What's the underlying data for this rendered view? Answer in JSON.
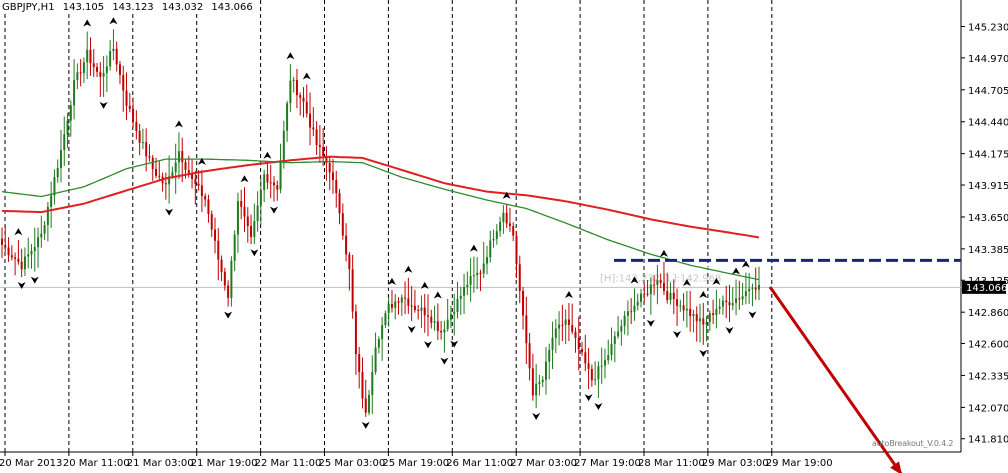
{
  "header": {
    "symbol": "GBPJPY,H1",
    "open": "143.105",
    "high": "143.123",
    "low": "143.032",
    "close": "143.066"
  },
  "current_price_label": "143.066",
  "box_label": "[H]:143.232 [L]:142.968",
  "watermark": "autoBreakout_V.0.4.2",
  "colors": {
    "bull": "#1f7a1f",
    "bear": "#c00000",
    "ma_fast": "#2e8b2e",
    "ma_slow": "#e02020",
    "level_line": "#1a237e",
    "arrow": "#c00000",
    "grid": "#000000",
    "price_line": "#c0c0c0"
  },
  "chart_data": {
    "type": "candlestick",
    "title": "GBPJPY,H1",
    "price_axis": {
      "range": [
        141.7,
        145.45
      ],
      "ticks": [
        "145.230",
        "144.970",
        "144.705",
        "144.440",
        "144.175",
        "143.915",
        "143.650",
        "143.385",
        "143.125",
        "142.860",
        "142.600",
        "142.335",
        "142.070",
        "141.810"
      ]
    },
    "time_axis": {
      "labels": [
        "20 Mar 2013",
        "20 Mar 11:00",
        "21 Mar 03:00",
        "21 Mar 19:00",
        "22 Mar 11:00",
        "25 Mar 03:00",
        "25 Mar 19:00",
        "26 Mar 11:00",
        "27 Mar 03:00",
        "27 Mar 19:00",
        "28 Mar 11:00",
        "29 Mar 03:00",
        "29 Mar 19:00"
      ],
      "separators": 13
    },
    "current_price": 143.066,
    "breakout_level": 143.29,
    "box": {
      "high": 143.232,
      "low": 142.968
    },
    "ma_fast_anchor": [
      [
        0,
        143.86
      ],
      [
        12,
        143.82
      ],
      [
        25,
        143.9
      ],
      [
        38,
        144.05
      ],
      [
        50,
        144.13
      ],
      [
        62,
        144.13
      ],
      [
        75,
        144.12
      ],
      [
        88,
        144.1
      ],
      [
        100,
        144.11
      ],
      [
        110,
        144.1
      ],
      [
        122,
        143.98
      ],
      [
        135,
        143.88
      ],
      [
        148,
        143.79
      ],
      [
        160,
        143.72
      ],
      [
        172,
        143.6
      ],
      [
        185,
        143.46
      ],
      [
        198,
        143.34
      ],
      [
        210,
        143.25
      ],
      [
        222,
        143.18
      ],
      [
        231,
        143.13
      ]
    ],
    "ma_slow_anchor": [
      [
        0,
        143.7
      ],
      [
        12,
        143.69
      ],
      [
        25,
        143.76
      ],
      [
        38,
        143.87
      ],
      [
        50,
        143.97
      ],
      [
        62,
        144.03
      ],
      [
        75,
        144.08
      ],
      [
        88,
        144.12
      ],
      [
        100,
        144.15
      ],
      [
        110,
        144.14
      ],
      [
        122,
        144.04
      ],
      [
        135,
        143.93
      ],
      [
        148,
        143.86
      ],
      [
        160,
        143.83
      ],
      [
        172,
        143.78
      ],
      [
        185,
        143.71
      ],
      [
        198,
        143.63
      ],
      [
        210,
        143.57
      ],
      [
        222,
        143.52
      ],
      [
        231,
        143.48
      ]
    ],
    "close_anchor": [
      [
        0,
        143.42
      ],
      [
        6,
        143.25
      ],
      [
        12,
        143.5
      ],
      [
        18,
        144.2
      ],
      [
        22,
        144.75
      ],
      [
        26,
        145.0
      ],
      [
        30,
        144.8
      ],
      [
        34,
        145.05
      ],
      [
        38,
        144.6
      ],
      [
        42,
        144.3
      ],
      [
        46,
        144.05
      ],
      [
        50,
        143.9
      ],
      [
        54,
        144.2
      ],
      [
        58,
        143.95
      ],
      [
        62,
        143.8
      ],
      [
        66,
        143.3
      ],
      [
        69,
        143.0
      ],
      [
        72,
        143.8
      ],
      [
        76,
        143.45
      ],
      [
        80,
        144.0
      ],
      [
        84,
        143.9
      ],
      [
        88,
        144.8
      ],
      [
        92,
        144.6
      ],
      [
        96,
        144.25
      ],
      [
        100,
        144.05
      ],
      [
        103,
        143.7
      ],
      [
        106,
        143.2
      ],
      [
        108,
        142.5
      ],
      [
        111,
        142.0
      ],
      [
        114,
        142.6
      ],
      [
        118,
        142.9
      ],
      [
        122,
        143.0
      ],
      [
        126,
        142.9
      ],
      [
        130,
        142.85
      ],
      [
        134,
        142.7
      ],
      [
        138,
        142.9
      ],
      [
        142,
        143.1
      ],
      [
        146,
        143.2
      ],
      [
        150,
        143.5
      ],
      [
        153,
        143.7
      ],
      [
        156,
        143.5
      ],
      [
        159,
        142.8
      ],
      [
        162,
        142.2
      ],
      [
        165,
        142.3
      ],
      [
        168,
        142.65
      ],
      [
        172,
        142.8
      ],
      [
        176,
        142.55
      ],
      [
        180,
        142.3
      ],
      [
        184,
        142.45
      ],
      [
        188,
        142.7
      ],
      [
        192,
        142.9
      ],
      [
        196,
        143.0
      ],
      [
        200,
        143.15
      ],
      [
        203,
        143.0
      ],
      [
        206,
        142.95
      ],
      [
        210,
        142.85
      ],
      [
        214,
        142.75
      ],
      [
        218,
        142.9
      ],
      [
        222,
        142.95
      ],
      [
        226,
        143.0
      ],
      [
        229,
        143.1
      ],
      [
        231,
        143.066
      ]
    ]
  }
}
